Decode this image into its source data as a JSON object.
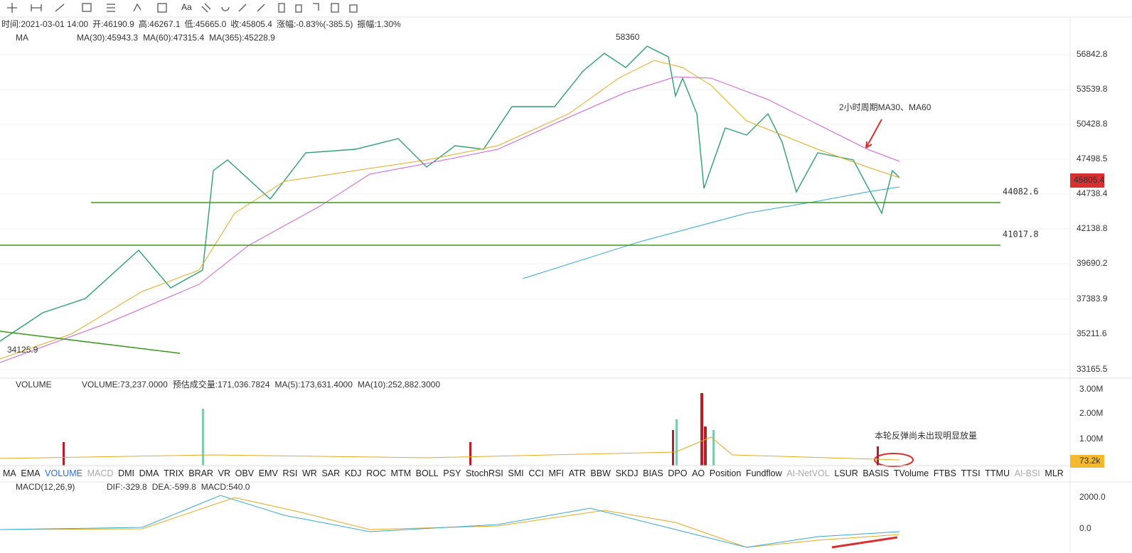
{
  "toolbar": {
    "text_tool": "Aa"
  },
  "info_bar": [
    "时间:2021-03-01 14:00",
    "开:46190.9",
    "高:46267.1",
    "低:45665.0",
    "收:45805.4",
    "涨幅:-0.83%(-385.5)",
    "振幅:1.30%"
  ],
  "ma_legend": {
    "name": "MA",
    "items": [
      "MA(30):45943.3",
      "MA(60):47315.4",
      "MA(365):45228.9"
    ]
  },
  "price_axis": {
    "labels": [
      "56842.8",
      "53539.8",
      "50428.8",
      "47498.5",
      "44738.4",
      "42138.8",
      "39690.2",
      "37383.9",
      "35211.6",
      "33165.5"
    ],
    "current": "45805.4"
  },
  "levels": [
    "44082.6",
    "41017.8"
  ],
  "annotations": {
    "high": "58360",
    "low": "34125.9",
    "ma_note": "2小时周期MA30、MA60",
    "volume_note": "本轮反弹尚未出现明显放量"
  },
  "volume_legend": {
    "name": "VOLUME",
    "items": [
      "VOLUME:73,237.0000",
      "预估成交量:171,036.7824",
      "MA(5):173,631.4000",
      "MA(10):252,882.3000"
    ]
  },
  "volume_axis": {
    "labels": [
      "3.00M",
      "2.00M",
      "1.00M"
    ],
    "current": "73.2k"
  },
  "indicator_tabs": [
    "MA",
    "EMA",
    "VOLUME",
    "MACD",
    "DMI",
    "DMA",
    "TRIX",
    "BRAR",
    "VR",
    "OBV",
    "EMV",
    "RSI",
    "WR",
    "SAR",
    "KDJ",
    "ROC",
    "MTM",
    "BOLL",
    "PSY",
    "StochRSI",
    "SMI",
    "CCI",
    "MFI",
    "ATR",
    "BBW",
    "SKDJ",
    "BIAS",
    "DPO",
    "AO",
    "Position",
    "Fundflow",
    "AI-NetVOL",
    "LSUR",
    "BASIS",
    "TVolume",
    "FTBS",
    "TTSI",
    "TTMU",
    "AI-BSI",
    "MLR"
  ],
  "macd_legend": {
    "name": "MACD(12,26,9)",
    "items": [
      "DIF:-329.8",
      "DEA:-599.8",
      "MACD:540.0"
    ]
  },
  "macd_axis": [
    "2000.0",
    "0.0"
  ]
}
